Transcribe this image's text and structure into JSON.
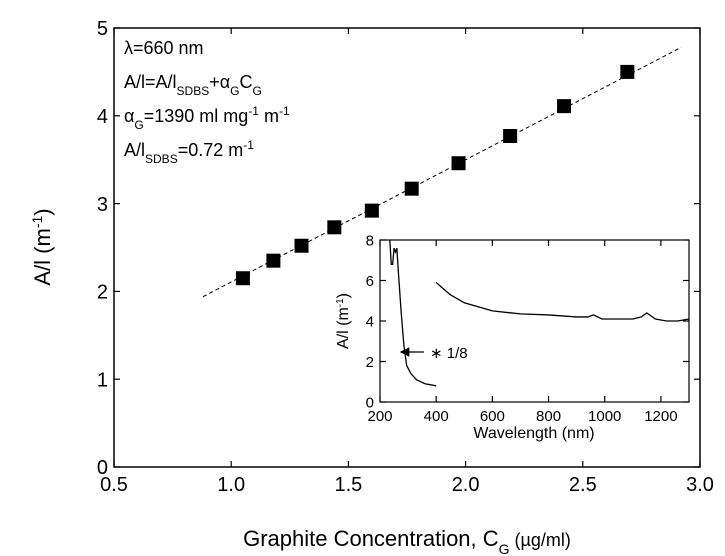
{
  "chart_data": [
    {
      "type": "scatter",
      "x": [
        1.05,
        1.18,
        1.3,
        1.44,
        1.6,
        1.77,
        1.97,
        2.19,
        2.42,
        2.69
      ],
      "y": [
        2.15,
        2.35,
        2.52,
        2.73,
        2.92,
        3.17,
        3.46,
        3.77,
        4.11,
        4.5
      ],
      "color": "#000000",
      "fit": {
        "x": [
          0.88,
          2.92
        ],
        "y": [
          1.94,
          4.78
        ]
      },
      "xlim": [
        0.5,
        3.0
      ],
      "xticks": [
        0.5,
        {
          "value": 1,
          "label": "1.0"
        },
        1.5,
        {
          "value": 2,
          "label": "2.0"
        },
        2.5,
        {
          "value": 3,
          "label": "3.0"
        }
      ],
      "ylim": [
        0,
        5
      ],
      "yticks": [
        0,
        1,
        2,
        3,
        4,
        5
      ],
      "x_label": [
        {
          "text": "Graphite Concentration, C"
        },
        {
          "text": "G",
          "shift": "sub"
        },
        {
          "text": " (µg/ml)",
          "size": "small"
        }
      ],
      "y_label": [
        {
          "text": "A/l (m"
        },
        {
          "text": "-1",
          "shift": "super"
        },
        {
          "text": ")"
        }
      ],
      "annotations": [
        [
          {
            "text": "λ=660 nm"
          }
        ],
        [
          {
            "text": "A/l=A/l"
          },
          {
            "text": "SDBS",
            "shift": "sub"
          },
          {
            "text": "+α"
          },
          {
            "text": "G",
            "shift": "sub"
          },
          {
            "text": "C"
          },
          {
            "text": "G",
            "shift": "sub"
          }
        ],
        [
          {
            "text": "α"
          },
          {
            "text": "G",
            "shift": "sub"
          },
          {
            "text": "=1390 ml mg"
          },
          {
            "text": "-1",
            "shift": "super"
          },
          {
            "text": " m"
          },
          {
            "text": "-1",
            "shift": "super"
          }
        ],
        [
          {
            "text": "A/l"
          },
          {
            "text": "SDBS",
            "shift": "sub"
          },
          {
            "text": "=0.72 m"
          },
          {
            "text": "-1",
            "shift": "super"
          }
        ]
      ]
    },
    {
      "type": "line",
      "series": [
        {
          "color": "#000000",
          "x": [
            235,
            240,
            245,
            250,
            255,
            260,
            265,
            275,
            285,
            295,
            310,
            330,
            360,
            400
          ],
          "values": [
            8.0,
            6.8,
            6.8,
            7.6,
            7.4,
            7.6,
            6.5,
            4.5,
            2.8,
            1.8,
            1.4,
            1.1,
            0.9,
            0.8
          ]
        },
        {
          "color": "#000000",
          "x": [
            400,
            450,
            500,
            600,
            700,
            800,
            900,
            940,
            960,
            990,
            1050,
            1100,
            1130,
            1150,
            1180,
            1220,
            1260,
            1300
          ],
          "values": [
            5.9,
            5.3,
            4.9,
            4.5,
            4.35,
            4.3,
            4.2,
            4.2,
            4.3,
            4.1,
            4.1,
            4.1,
            4.2,
            4.4,
            4.1,
            4.0,
            4.0,
            4.1
          ]
        }
      ],
      "xlim": [
        200,
        1300
      ],
      "xticks": [
        200,
        400,
        600,
        800,
        1000,
        1200
      ],
      "ylim": [
        0,
        8
      ],
      "yticks": [
        0,
        2,
        4,
        6,
        8
      ],
      "x_label": [
        {
          "text": "Wavelength (nm)"
        }
      ],
      "y_label": [
        {
          "text": "A/l (m"
        },
        {
          "text": "-1",
          "shift": "super"
        },
        {
          "text": ")"
        }
      ],
      "annotation": "∗ 1/8"
    }
  ]
}
